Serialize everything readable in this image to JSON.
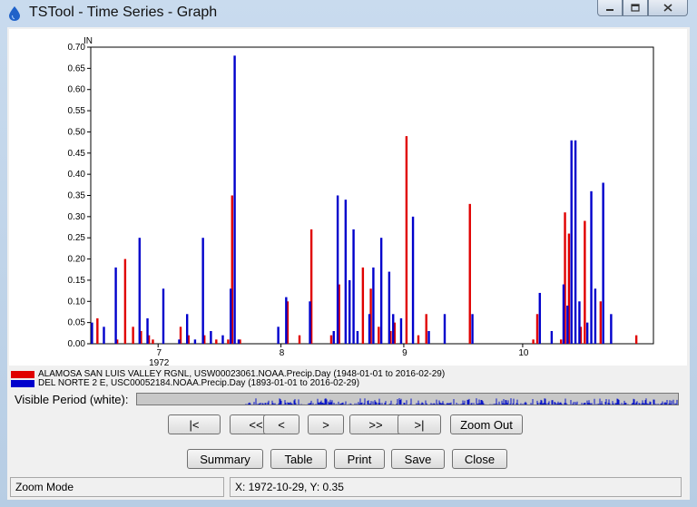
{
  "window": {
    "title": "TSTool - Time Series - Graph"
  },
  "chart_data": {
    "type": "bar",
    "ylabel": "IN",
    "ylim": [
      0,
      0.7
    ],
    "yticks": [
      "0.00",
      "0.05",
      "0.10",
      "0.15",
      "0.20",
      "0.25",
      "0.30",
      "0.35",
      "0.40",
      "0.45",
      "0.50",
      "0.55",
      "0.60",
      "0.65",
      "0.70"
    ],
    "xlim": [
      "1972-06-14",
      "1972-11-03"
    ],
    "xticks": [
      {
        "label": "7",
        "date": "1972-07-01"
      },
      {
        "label": "8",
        "date": "1972-08-01"
      },
      {
        "label": "9",
        "date": "1972-09-01"
      },
      {
        "label": "10",
        "date": "1972-10-01"
      }
    ],
    "year_label": "1972",
    "series": [
      {
        "name": "ALAMOSA SAN LUIS VALLEY RGNL, USW00023061.NOAA.Precip.Day (1948-01-01 to 2016-02-29)",
        "color": "#e00000",
        "points": [
          [
            "1972-06-16",
            0.06
          ],
          [
            "1972-06-21",
            0.01
          ],
          [
            "1972-06-23",
            0.2
          ],
          [
            "1972-06-25",
            0.04
          ],
          [
            "1972-06-27",
            0.03
          ],
          [
            "1972-06-29",
            0.02
          ],
          [
            "1972-06-30",
            0.01
          ],
          [
            "1972-07-07",
            0.04
          ],
          [
            "1972-07-09",
            0.02
          ],
          [
            "1972-07-13",
            0.02
          ],
          [
            "1972-07-16",
            0.01
          ],
          [
            "1972-07-19",
            0.01
          ],
          [
            "1972-07-20",
            0.35
          ],
          [
            "1972-07-22",
            0.01
          ],
          [
            "1972-08-03",
            0.1
          ],
          [
            "1972-08-06",
            0.02
          ],
          [
            "1972-08-09",
            0.27
          ],
          [
            "1972-08-14",
            0.02
          ],
          [
            "1972-08-16",
            0.14
          ],
          [
            "1972-08-22",
            0.18
          ],
          [
            "1972-08-24",
            0.13
          ],
          [
            "1972-08-26",
            0.04
          ],
          [
            "1972-08-29",
            0.03
          ],
          [
            "1972-08-30",
            0.05
          ],
          [
            "1972-09-02",
            0.49
          ],
          [
            "1972-09-05",
            0.02
          ],
          [
            "1972-09-07",
            0.07
          ],
          [
            "1972-09-18",
            0.33
          ],
          [
            "1972-10-04",
            0.01
          ],
          [
            "1972-10-05",
            0.07
          ],
          [
            "1972-10-11",
            0.01
          ],
          [
            "1972-10-12",
            0.31
          ],
          [
            "1972-10-13",
            0.26
          ],
          [
            "1972-10-16",
            0.04
          ],
          [
            "1972-10-17",
            0.29
          ],
          [
            "1972-10-21",
            0.1
          ],
          [
            "1972-10-30",
            0.02
          ]
        ]
      },
      {
        "name": "DEL NORTE 2 E, USC00052184.NOAA.Precip.Day (1893-01-01 to 2016-02-29)",
        "color": "#0000cc",
        "points": [
          [
            "1972-06-14",
            0.05
          ],
          [
            "1972-06-17",
            0.04
          ],
          [
            "1972-06-20",
            0.18
          ],
          [
            "1972-06-26",
            0.25
          ],
          [
            "1972-06-28",
            0.06
          ],
          [
            "1972-07-02",
            0.13
          ],
          [
            "1972-07-06",
            0.01
          ],
          [
            "1972-07-08",
            0.07
          ],
          [
            "1972-07-10",
            0.01
          ],
          [
            "1972-07-12",
            0.25
          ],
          [
            "1972-07-14",
            0.03
          ],
          [
            "1972-07-17",
            0.02
          ],
          [
            "1972-07-19",
            0.13
          ],
          [
            "1972-07-20",
            0.68
          ],
          [
            "1972-07-21",
            0.01
          ],
          [
            "1972-07-31",
            0.04
          ],
          [
            "1972-08-02",
            0.11
          ],
          [
            "1972-08-08",
            0.1
          ],
          [
            "1972-08-14",
            0.03
          ],
          [
            "1972-08-15",
            0.35
          ],
          [
            "1972-08-17",
            0.34
          ],
          [
            "1972-08-18",
            0.15
          ],
          [
            "1972-08-19",
            0.27
          ],
          [
            "1972-08-20",
            0.03
          ],
          [
            "1972-08-23",
            0.07
          ],
          [
            "1972-08-24",
            0.18
          ],
          [
            "1972-08-26",
            0.25
          ],
          [
            "1972-08-28",
            0.17
          ],
          [
            "1972-08-29",
            0.07
          ],
          [
            "1972-08-31",
            0.06
          ],
          [
            "1972-09-03",
            0.3
          ],
          [
            "1972-09-07",
            0.03
          ],
          [
            "1972-09-11",
            0.07
          ],
          [
            "1972-09-18",
            0.07
          ],
          [
            "1972-10-05",
            0.12
          ],
          [
            "1972-10-08",
            0.03
          ],
          [
            "1972-10-11",
            0.14
          ],
          [
            "1972-10-12",
            0.09
          ],
          [
            "1972-10-13",
            0.48
          ],
          [
            "1972-10-14",
            0.48
          ],
          [
            "1972-10-15",
            0.1
          ],
          [
            "1972-10-17",
            0.05
          ],
          [
            "1972-10-18",
            0.36
          ],
          [
            "1972-10-19",
            0.13
          ],
          [
            "1972-10-21",
            0.38
          ],
          [
            "1972-10-23",
            0.07
          ]
        ]
      }
    ]
  },
  "visible_period_label": "Visible Period (white):",
  "nav": {
    "first": "|<",
    "prev_page": "<<",
    "prev": "<",
    "next": ">",
    "next_page": ">>",
    "last": ">|",
    "zoom_out": "Zoom Out"
  },
  "actions": {
    "summary": "Summary",
    "table": "Table",
    "print": "Print",
    "save": "Save",
    "close": "Close"
  },
  "status": {
    "mode": "Zoom Mode",
    "coords": "X:  1972-10-29,  Y:  0.35"
  },
  "icons": {
    "app": "droplet-icon",
    "minimize": "minimize-icon",
    "maximize": "maximize-icon",
    "close": "close-icon"
  }
}
